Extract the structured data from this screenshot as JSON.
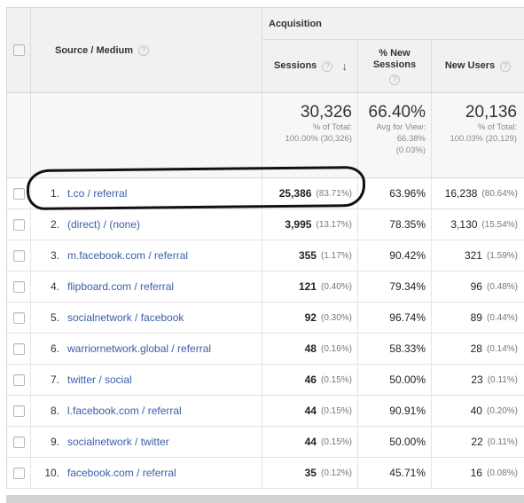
{
  "header": {
    "dimension_label": "Source / Medium",
    "group_label": "Acquisition",
    "col_sessions": "Sessions",
    "col_new_sessions": "% New Sessions",
    "col_new_users": "New Users",
    "help_glyph": "?",
    "sort_glyph": "↓"
  },
  "totals": {
    "sessions": {
      "value": "30,326",
      "line1": "% of Total:",
      "line2": "100.00% (30,326)"
    },
    "new_sessions": {
      "value": "66.40%",
      "line1": "Avg for View:",
      "line2": "66.38%",
      "line3": "(0.03%)"
    },
    "new_users": {
      "value": "20,136",
      "line1": "% of Total:",
      "line2": "100.03% (20,129)"
    }
  },
  "rows": [
    {
      "index": "1.",
      "source": "t.co / referral",
      "sessions": "25,386",
      "sessions_pct": "(83.71%)",
      "new_sessions": "63.96%",
      "new_users": "16,238",
      "new_users_pct": "(80.64%)"
    },
    {
      "index": "2.",
      "source": "(direct) / (none)",
      "sessions": "3,995",
      "sessions_pct": "(13.17%)",
      "new_sessions": "78.35%",
      "new_users": "3,130",
      "new_users_pct": "(15.54%)"
    },
    {
      "index": "3.",
      "source": "m.facebook.com / referral",
      "sessions": "355",
      "sessions_pct": "(1.17%)",
      "new_sessions": "90.42%",
      "new_users": "321",
      "new_users_pct": "(1.59%)"
    },
    {
      "index": "4.",
      "source": "flipboard.com / referral",
      "sessions": "121",
      "sessions_pct": "(0.40%)",
      "new_sessions": "79.34%",
      "new_users": "96",
      "new_users_pct": "(0.48%)"
    },
    {
      "index": "5.",
      "source": "socialnetwork / facebook",
      "sessions": "92",
      "sessions_pct": "(0.30%)",
      "new_sessions": "96.74%",
      "new_users": "89",
      "new_users_pct": "(0.44%)"
    },
    {
      "index": "6.",
      "source": "warriornetwork.global / referral",
      "sessions": "48",
      "sessions_pct": "(0.16%)",
      "new_sessions": "58.33%",
      "new_users": "28",
      "new_users_pct": "(0.14%)"
    },
    {
      "index": "7.",
      "source": "twitter / social",
      "sessions": "46",
      "sessions_pct": "(0.15%)",
      "new_sessions": "50.00%",
      "new_users": "23",
      "new_users_pct": "(0.11%)"
    },
    {
      "index": "8.",
      "source": "l.facebook.com / referral",
      "sessions": "44",
      "sessions_pct": "(0.15%)",
      "new_sessions": "90.91%",
      "new_users": "40",
      "new_users_pct": "(0.20%)"
    },
    {
      "index": "9.",
      "source": "socialnetwork / twitter",
      "sessions": "44",
      "sessions_pct": "(0.15%)",
      "new_sessions": "50.00%",
      "new_users": "22",
      "new_users_pct": "(0.11%)"
    },
    {
      "index": "10.",
      "source": "facebook.com / referral",
      "sessions": "35",
      "sessions_pct": "(0.12%)",
      "new_sessions": "45.71%",
      "new_users": "16",
      "new_users_pct": "(0.08%)"
    }
  ],
  "colors": {
    "link": "#3b5ea8",
    "header_bg": "#f1f1f1",
    "totals_bg": "#f7f7f7",
    "annotation": "#111111"
  }
}
